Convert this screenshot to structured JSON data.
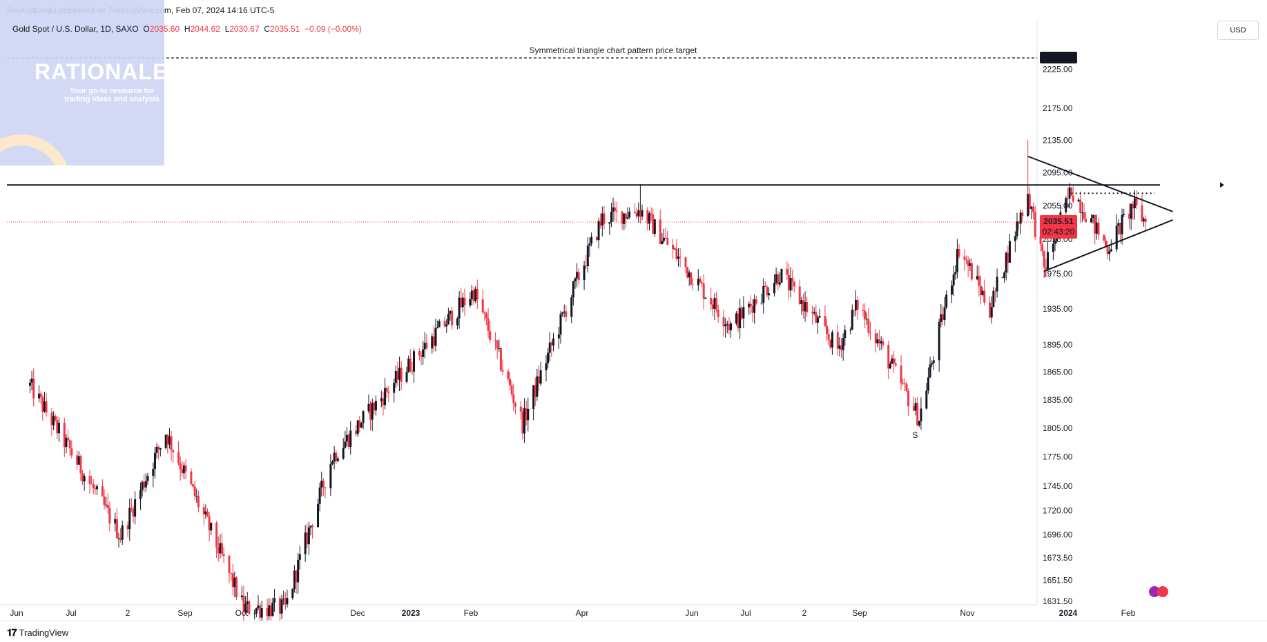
{
  "header": {
    "publish_line": "RoyGulluoglu published on TradingView.com, Feb 07, 2024 14:16 UTC-5",
    "symbol": "Gold Spot / U.S. Dollar, 1D, SAXO",
    "ohlc": [
      {
        "label": "O",
        "value": "2035.60"
      },
      {
        "label": "H",
        "value": "2044.62"
      },
      {
        "label": "L",
        "value": "2030.67"
      },
      {
        "label": "C",
        "value": "2035.51"
      }
    ],
    "change": "−0.09 (−0.00%)",
    "currency": "USD"
  },
  "watermark": {
    "title": "RATIONALE",
    "subtitle": "Your go-to resource for trading ideas and analysis"
  },
  "footer": {
    "logo_text": "TradingView"
  },
  "colors": {
    "up": "#131722",
    "down": "#f23645",
    "price_line": "#f23645",
    "grid": "#f0f3fa"
  },
  "chart_data": {
    "type": "candlestick",
    "title": "",
    "xlabel": "",
    "ylabel": "",
    "x_tick_labels": [
      "Jun",
      "Jul",
      "2",
      "Sep",
      "Oct",
      "Dec",
      "2023",
      "Feb",
      "Apr",
      "Jun",
      "Jul",
      "2",
      "Sep",
      "Nov",
      "2024",
      "Feb"
    ],
    "x_tick_bold": [
      "2023",
      "2024"
    ],
    "y_tick_labels": [
      "2225.00",
      "2175.00",
      "2135.00",
      "2095.00",
      "2055.00",
      "2015.00",
      "1975.00",
      "1935.00",
      "1895.00",
      "1865.00",
      "1835.00",
      "1805.00",
      "1775.00",
      "1745.00",
      "1720.00",
      "1696.00",
      "1673.50",
      "1651.50",
      "1631.50"
    ],
    "scale": "log",
    "last_price": "2035.51",
    "countdown": "02:43:20",
    "target_price": "2240.00",
    "annotations": {
      "target_text": "Symmetrical triangle chart pattern price target",
      "swing_label": "S"
    },
    "resistance_level": 2080,
    "key_points": [
      {
        "date": "2022-06-01",
        "price": 1850
      },
      {
        "date": "2022-07-21",
        "price": 1695
      },
      {
        "date": "2022-08-15",
        "price": 1800
      },
      {
        "date": "2022-09-27",
        "price": 1625
      },
      {
        "date": "2022-10-20",
        "price": 1625
      },
      {
        "date": "2022-11-15",
        "price": 1775
      },
      {
        "date": "2023-02-01",
        "price": 1955
      },
      {
        "date": "2023-02-28",
        "price": 1810
      },
      {
        "date": "2023-04-13",
        "price": 2040
      },
      {
        "date": "2023-05-04",
        "price": 2050
      },
      {
        "date": "2023-06-23",
        "price": 1915
      },
      {
        "date": "2023-07-20",
        "price": 1975
      },
      {
        "date": "2023-08-21",
        "price": 1890
      },
      {
        "date": "2023-09-01",
        "price": 1940
      },
      {
        "date": "2023-10-05",
        "price": 1815
      },
      {
        "date": "2023-10-27",
        "price": 2005
      },
      {
        "date": "2023-11-13",
        "price": 1935
      },
      {
        "date": "2023-12-04",
        "price": 2070
      },
      {
        "date": "2023-12-13",
        "price": 1980
      },
      {
        "date": "2023-12-28",
        "price": 2075
      },
      {
        "date": "2024-01-17",
        "price": 2005
      },
      {
        "date": "2024-01-31",
        "price": 2055
      },
      {
        "date": "2024-02-07",
        "price": 2035.51
      }
    ],
    "triangle": {
      "upper": [
        {
          "date": "2023-12-04",
          "price": 2115
        },
        {
          "date": "2024-02-22",
          "price": 2048
        }
      ],
      "lower": [
        {
          "date": "2023-12-13",
          "price": 1978
        },
        {
          "date": "2024-02-22",
          "price": 2038
        }
      ]
    }
  }
}
